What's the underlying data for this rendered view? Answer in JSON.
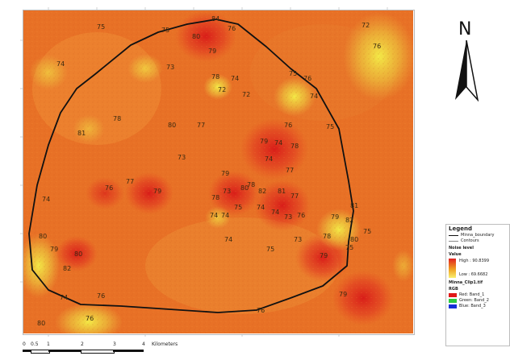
{
  "legend": {
    "title": "Legend",
    "boundary_label": "Minna_boundary",
    "contours_label": "Contours",
    "noise_level_heading": "Noise level",
    "value_heading": "Value",
    "high_label": "High : 90.8399",
    "low_label": "Low : 69.6682",
    "raster_heading": "Minna_Clip1.tif",
    "rgb_heading": "RGB",
    "bands": [
      {
        "label": "Red: Band_1",
        "color": "#e01818"
      },
      {
        "label": "Green: Band_2",
        "color": "#2ecc40"
      },
      {
        "label": "Blue: Band_3",
        "color": "#1530d8"
      }
    ]
  },
  "north_arrow": {
    "label": "N"
  },
  "scale_bar": {
    "ticks": [
      "0",
      "0.5",
      "1",
      "2",
      "3",
      "4"
    ],
    "unit": "Kilometers"
  },
  "contour_labels": [
    "75",
    "80",
    "84",
    "79",
    "76",
    "75",
    "74",
    "73",
    "78",
    "74",
    "72",
    "75",
    "76",
    "74",
    "72",
    "72",
    "76",
    "78",
    "81",
    "80",
    "77",
    "73",
    "76",
    "75",
    "79",
    "74",
    "78",
    "74",
    "77",
    "79",
    "80",
    "78",
    "82",
    "81",
    "77",
    "73",
    "74",
    "76",
    "77",
    "79",
    "74",
    "78",
    "82",
    "81",
    "75",
    "79",
    "78",
    "74",
    "75",
    "74",
    "74",
    "73",
    "76",
    "80",
    "79",
    "82",
    "80",
    "74",
    "76",
    "79",
    "76",
    "80",
    "76",
    "80",
    "75",
    "79",
    "73",
    "74",
    "75"
  ],
  "colors": {
    "noise_high": "#dc1e1e",
    "noise_mid": "#ea7a22",
    "noise_low": "#f4ec48",
    "boundary": "#111111"
  }
}
